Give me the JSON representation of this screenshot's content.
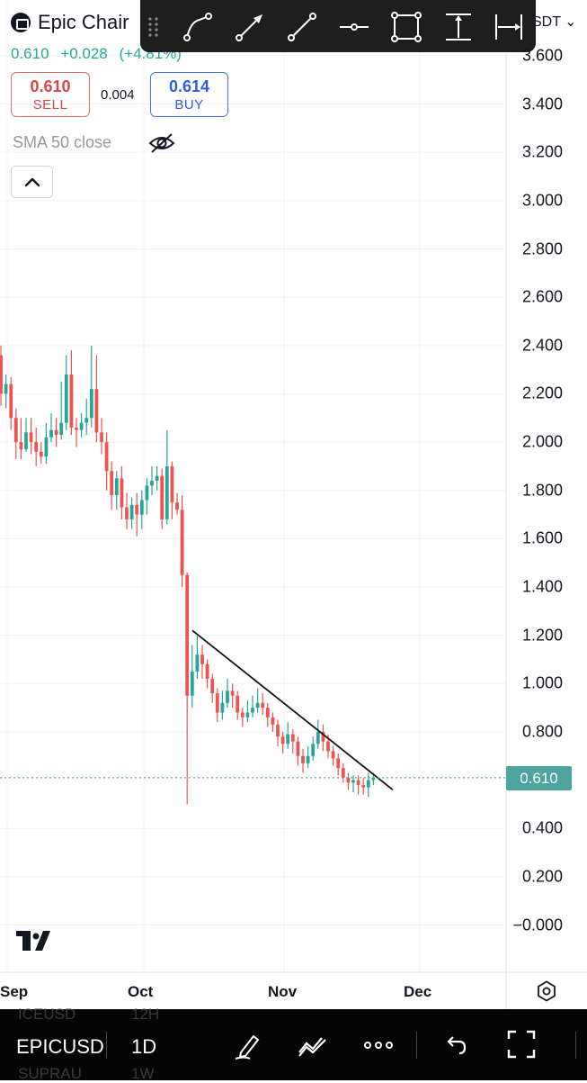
{
  "header": {
    "title": "Epic Chair",
    "last_price": "0.610",
    "change": "+0.028",
    "change_percent": "(+4.81%)",
    "sell_price": "0.610",
    "sell_label": "SELL",
    "spread": "0.004",
    "buy_price": "0.614",
    "buy_label": "BUY",
    "indicator_label": "SMA 50 close"
  },
  "toolbar": {
    "tools": [
      "trend-line-icon",
      "arrow-line-icon",
      "ray-line-icon",
      "horizontal-line-icon",
      "rectangle-icon",
      "vertical-range-icon",
      "horizontal-range-icon"
    ]
  },
  "symbol_chip": "SDT",
  "price_axis": {
    "labels": [
      "3.600",
      "3.400",
      "3.200",
      "3.000",
      "2.800",
      "2.600",
      "2.400",
      "2.200",
      "2.000",
      "1.800",
      "1.600",
      "1.400",
      "1.200",
      "1.000",
      "0.800",
      "0.400",
      "0.200",
      "−0.000"
    ],
    "current_price_tag": "0.610"
  },
  "time_axis": {
    "labels": [
      "Sep",
      "Oct",
      "Nov",
      "Dec"
    ]
  },
  "bottom_bar": {
    "symbol": "EPICUSD",
    "resolution": "1D",
    "ghost_symbol_above": "ICEUSD",
    "ghost_resolution_above": "12H",
    "ghost_symbol_below": "SUPRAU",
    "ghost_resolution_below": "1W"
  },
  "colors": {
    "up": "#26a69a",
    "down": "#ef5350",
    "price_tag": "#4fa59b",
    "sell": "#d94646",
    "buy": "#2f5cd9"
  },
  "chart_data": {
    "type": "candlestick",
    "ylim": [
      -0.1,
      3.7
    ],
    "x_ticks": [
      "Sep",
      "Oct",
      "Nov",
      "Dec"
    ],
    "candles": [
      [
        2.36,
        2.2,
        2.4,
        2.15
      ],
      [
        2.2,
        2.24,
        2.28,
        2.14
      ],
      [
        2.24,
        2.1,
        2.27,
        2.05
      ],
      [
        2.1,
        2.0,
        2.14,
        1.93
      ],
      [
        2.0,
        1.97,
        2.1,
        1.93
      ],
      [
        1.97,
        2.04,
        2.1,
        1.96
      ],
      [
        2.04,
        2.0,
        2.1,
        1.95
      ],
      [
        2.0,
        1.96,
        2.06,
        1.9
      ],
      [
        1.96,
        1.94,
        2.0,
        1.91
      ],
      [
        1.94,
        2.02,
        2.08,
        1.91
      ],
      [
        2.02,
        2.05,
        2.12,
        2.0
      ],
      [
        2.05,
        2.03,
        2.1,
        1.98
      ],
      [
        2.03,
        2.08,
        2.25,
        2.01
      ],
      [
        2.08,
        2.28,
        2.36,
        2.05
      ],
      [
        2.28,
        2.06,
        2.38,
        2.03
      ],
      [
        2.06,
        2.05,
        2.1,
        1.98
      ],
      [
        2.05,
        2.08,
        2.12,
        2.02
      ],
      [
        2.08,
        2.1,
        2.18,
        2.03
      ],
      [
        2.1,
        2.22,
        2.4,
        2.06
      ],
      [
        2.22,
        2.04,
        2.36,
        2.0
      ],
      [
        2.04,
        2.0,
        2.1,
        1.95
      ],
      [
        2.0,
        1.88,
        2.04,
        1.8
      ],
      [
        1.88,
        1.78,
        1.92,
        1.72
      ],
      [
        1.78,
        1.85,
        1.88,
        1.72
      ],
      [
        1.85,
        1.73,
        1.9,
        1.68
      ],
      [
        1.73,
        1.68,
        1.79,
        1.64
      ],
      [
        1.68,
        1.74,
        1.77,
        1.64
      ],
      [
        1.74,
        1.7,
        1.79,
        1.61
      ],
      [
        1.7,
        1.76,
        1.8,
        1.64
      ],
      [
        1.76,
        1.82,
        1.85,
        1.7
      ],
      [
        1.82,
        1.84,
        1.9,
        1.78
      ],
      [
        1.84,
        1.86,
        1.9,
        1.8
      ],
      [
        1.86,
        1.68,
        1.89,
        1.64
      ],
      [
        1.68,
        1.9,
        2.05,
        1.66
      ],
      [
        1.9,
        1.75,
        1.92,
        1.68
      ],
      [
        1.75,
        1.72,
        1.79,
        1.7
      ],
      [
        1.72,
        1.45,
        1.78,
        1.4
      ],
      [
        1.45,
        0.95,
        1.46,
        0.5
      ],
      [
        0.95,
        1.05,
        1.16,
        0.9
      ],
      [
        1.05,
        1.12,
        1.2,
        1.02
      ],
      [
        1.12,
        1.08,
        1.16,
        1.02
      ],
      [
        1.08,
        1.02,
        1.1,
        0.98
      ],
      [
        1.02,
        0.96,
        1.04,
        0.92
      ],
      [
        0.96,
        0.88,
        0.98,
        0.84
      ],
      [
        0.88,
        0.92,
        0.97,
        0.85
      ],
      [
        0.92,
        0.97,
        1.02,
        0.9
      ],
      [
        0.97,
        0.95,
        1.0,
        0.9
      ],
      [
        0.95,
        0.88,
        0.97,
        0.85
      ],
      [
        0.88,
        0.86,
        0.9,
        0.82
      ],
      [
        0.86,
        0.88,
        0.93,
        0.84
      ],
      [
        0.88,
        0.9,
        0.95,
        0.86
      ],
      [
        0.9,
        0.92,
        0.98,
        0.88
      ],
      [
        0.92,
        0.9,
        0.96,
        0.87
      ],
      [
        0.9,
        0.86,
        0.92,
        0.82
      ],
      [
        0.86,
        0.83,
        0.88,
        0.8
      ],
      [
        0.83,
        0.78,
        0.85,
        0.74
      ],
      [
        0.78,
        0.75,
        0.8,
        0.71
      ],
      [
        0.75,
        0.79,
        0.84,
        0.73
      ],
      [
        0.79,
        0.76,
        0.81,
        0.71
      ],
      [
        0.76,
        0.7,
        0.78,
        0.66
      ],
      [
        0.7,
        0.67,
        0.73,
        0.63
      ],
      [
        0.67,
        0.7,
        0.74,
        0.65
      ],
      [
        0.7,
        0.75,
        0.78,
        0.68
      ],
      [
        0.75,
        0.8,
        0.85,
        0.73
      ],
      [
        0.8,
        0.76,
        0.83,
        0.72
      ],
      [
        0.76,
        0.72,
        0.79,
        0.69
      ],
      [
        0.72,
        0.69,
        0.74,
        0.66
      ],
      [
        0.69,
        0.65,
        0.71,
        0.62
      ],
      [
        0.65,
        0.61,
        0.67,
        0.59
      ],
      [
        0.61,
        0.59,
        0.63,
        0.56
      ],
      [
        0.59,
        0.6,
        0.62,
        0.55
      ],
      [
        0.6,
        0.58,
        0.62,
        0.54
      ],
      [
        0.58,
        0.57,
        0.61,
        0.54
      ],
      [
        0.57,
        0.6,
        0.63,
        0.53
      ],
      [
        0.6,
        0.61,
        0.63,
        0.58
      ]
    ],
    "trendline": {
      "from_price": 1.22,
      "to_price": 0.56
    },
    "current_price": 0.61
  }
}
